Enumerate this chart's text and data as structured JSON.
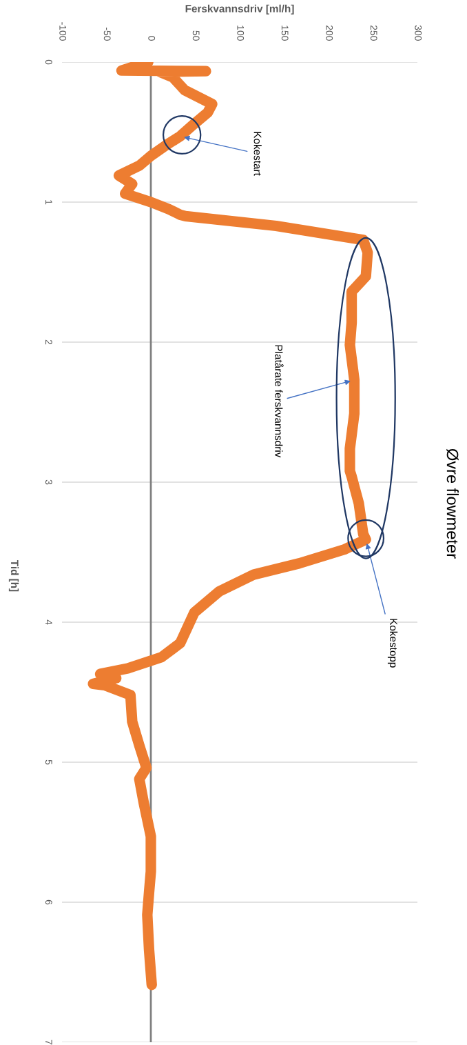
{
  "chart_data": {
    "type": "line",
    "title": "Øvre flowmeter",
    "xlabel": "Ferskvannsdriv [ml/h]",
    "ylabel": "Tid [h]",
    "x": [
      -3,
      -33,
      62,
      10,
      25,
      38,
      69,
      64,
      49,
      33,
      18,
      0,
      -13,
      -36,
      -21,
      -29,
      0,
      20,
      33,
      39,
      141,
      239,
      244,
      242,
      226,
      226,
      224,
      229,
      229,
      224,
      224,
      226,
      234,
      239,
      242,
      218,
      167,
      116,
      77,
      49,
      33,
      12,
      -26,
      -57,
      -39,
      -65,
      -52,
      -23,
      -21,
      -13,
      -5,
      -13,
      -8,
      0,
      0,
      -2,
      -4,
      -2,
      1
    ],
    "series": [
      {
        "color": "#ed7d31",
        "values": [
          0,
          0.06,
          0.065,
          0.07,
          0.11,
          0.2,
          0.3,
          0.36,
          0.44,
          0.53,
          0.59,
          0.67,
          0.74,
          0.81,
          0.87,
          0.94,
          1.0,
          1.05,
          1.09,
          1.1,
          1.17,
          1.27,
          1.36,
          1.53,
          1.64,
          1.86,
          2.02,
          2.27,
          2.51,
          2.76,
          2.92,
          2.96,
          3.15,
          3.37,
          3.41,
          3.48,
          3.58,
          3.66,
          3.78,
          3.93,
          4.15,
          4.25,
          4.33,
          4.37,
          4.4,
          4.44,
          4.45,
          4.52,
          4.71,
          4.88,
          5.04,
          5.12,
          5.29,
          5.53,
          5.78,
          5.93,
          6.09,
          6.34,
          6.59
        ]
      }
    ],
    "xlim": [
      -100,
      300
    ],
    "xticks": [
      -100,
      -50,
      0,
      50,
      100,
      150,
      200,
      250,
      300
    ],
    "ylim": [
      7,
      0
    ],
    "yticks": [
      0,
      1,
      2,
      3,
      4,
      5,
      6,
      7
    ],
    "grid": "y",
    "ref_lines": [
      {
        "axis": "x",
        "value": 0,
        "color": "#808080"
      }
    ],
    "annotations": [
      {
        "text": "Kokestart",
        "x": 33,
        "y": 0.53
      },
      {
        "text": "Platårate ferskvannsdriv",
        "x": 229,
        "y": 2.27
      },
      {
        "text": "Kokestopp",
        "x": 242,
        "y": 3.41
      }
    ]
  }
}
